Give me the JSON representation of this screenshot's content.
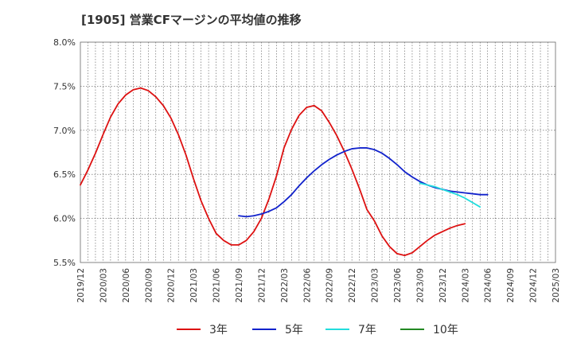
{
  "chart_data": {
    "type": "line",
    "title": "[1905]  営業CFマージンの平均値の推移",
    "x_ticks": [
      "2019/12",
      "2020/03",
      "2020/06",
      "2020/09",
      "2020/12",
      "2021/03",
      "2021/06",
      "2021/09",
      "2021/12",
      "2022/03",
      "2022/06",
      "2022/09",
      "2022/12",
      "2023/03",
      "2023/06",
      "2023/09",
      "2023/12",
      "2024/03",
      "2024/06",
      "2024/09",
      "2024/12",
      "2025/03"
    ],
    "y_ticks": [
      "5.5%",
      "6.0%",
      "6.5%",
      "7.0%",
      "7.5%",
      "8.0%"
    ],
    "ylim": [
      5.5,
      8.0
    ],
    "grid": true,
    "legend_position": "bottom",
    "series": [
      {
        "name": "3年",
        "color": "#dd1111",
        "points": [
          [
            "2019/12",
            6.38
          ],
          [
            "2020/01",
            6.55
          ],
          [
            "2020/02",
            6.74
          ],
          [
            "2020/03",
            6.95
          ],
          [
            "2020/04",
            7.15
          ],
          [
            "2020/05",
            7.3
          ],
          [
            "2020/06",
            7.4
          ],
          [
            "2020/07",
            7.46
          ],
          [
            "2020/08",
            7.48
          ],
          [
            "2020/09",
            7.45
          ],
          [
            "2020/10",
            7.38
          ],
          [
            "2020/11",
            7.28
          ],
          [
            "2020/12",
            7.14
          ],
          [
            "2021/01",
            6.95
          ],
          [
            "2021/02",
            6.72
          ],
          [
            "2021/03",
            6.45
          ],
          [
            "2021/04",
            6.2
          ],
          [
            "2021/05",
            6.0
          ],
          [
            "2021/06",
            5.83
          ],
          [
            "2021/07",
            5.75
          ],
          [
            "2021/08",
            5.7
          ],
          [
            "2021/09",
            5.7
          ],
          [
            "2021/10",
            5.75
          ],
          [
            "2021/11",
            5.85
          ],
          [
            "2021/12",
            6.0
          ],
          [
            "2022/01",
            6.22
          ],
          [
            "2022/02",
            6.48
          ],
          [
            "2022/03",
            6.8
          ],
          [
            "2022/04",
            7.01
          ],
          [
            "2022/05",
            7.17
          ],
          [
            "2022/06",
            7.26
          ],
          [
            "2022/07",
            7.28
          ],
          [
            "2022/08",
            7.22
          ],
          [
            "2022/09",
            7.09
          ],
          [
            "2022/10",
            6.94
          ],
          [
            "2022/11",
            6.76
          ],
          [
            "2022/12",
            6.56
          ],
          [
            "2023/01",
            6.34
          ],
          [
            "2023/02",
            6.1
          ],
          [
            "2023/03",
            5.97
          ],
          [
            "2023/04",
            5.8
          ],
          [
            "2023/05",
            5.68
          ],
          [
            "2023/06",
            5.6
          ],
          [
            "2023/07",
            5.58
          ],
          [
            "2023/08",
            5.61
          ],
          [
            "2023/09",
            5.68
          ],
          [
            "2023/10",
            5.75
          ],
          [
            "2023/11",
            5.81
          ],
          [
            "2023/12",
            5.85
          ],
          [
            "2024/01",
            5.89
          ],
          [
            "2024/02",
            5.92
          ],
          [
            "2024/03",
            5.94
          ]
        ]
      },
      {
        "name": "5年",
        "color": "#1122cc",
        "points": [
          [
            "2021/09",
            6.03
          ],
          [
            "2021/10",
            6.02
          ],
          [
            "2021/11",
            6.03
          ],
          [
            "2021/12",
            6.05
          ],
          [
            "2022/01",
            6.08
          ],
          [
            "2022/02",
            6.12
          ],
          [
            "2022/03",
            6.19
          ],
          [
            "2022/04",
            6.27
          ],
          [
            "2022/05",
            6.37
          ],
          [
            "2022/06",
            6.46
          ],
          [
            "2022/07",
            6.54
          ],
          [
            "2022/08",
            6.61
          ],
          [
            "2022/09",
            6.67
          ],
          [
            "2022/10",
            6.72
          ],
          [
            "2022/11",
            6.76
          ],
          [
            "2022/12",
            6.79
          ],
          [
            "2023/01",
            6.8
          ],
          [
            "2023/02",
            6.8
          ],
          [
            "2023/03",
            6.78
          ],
          [
            "2023/04",
            6.74
          ],
          [
            "2023/05",
            6.68
          ],
          [
            "2023/06",
            6.61
          ],
          [
            "2023/07",
            6.53
          ],
          [
            "2023/08",
            6.47
          ],
          [
            "2023/09",
            6.42
          ],
          [
            "2023/10",
            6.38
          ],
          [
            "2023/11",
            6.35
          ],
          [
            "2023/12",
            6.33
          ],
          [
            "2024/01",
            6.31
          ],
          [
            "2024/02",
            6.3
          ],
          [
            "2024/03",
            6.29
          ],
          [
            "2024/04",
            6.28
          ],
          [
            "2024/05",
            6.27
          ],
          [
            "2024/06",
            6.27
          ]
        ]
      },
      {
        "name": "7年",
        "color": "#22dddd",
        "points": [
          [
            "2023/09",
            6.4
          ],
          [
            "2023/10",
            6.38
          ],
          [
            "2023/11",
            6.36
          ],
          [
            "2023/12",
            6.33
          ],
          [
            "2024/01",
            6.3
          ],
          [
            "2024/02",
            6.27
          ],
          [
            "2024/03",
            6.23
          ],
          [
            "2024/04",
            6.18
          ],
          [
            "2024/05",
            6.13
          ]
        ]
      },
      {
        "name": "10年",
        "color": "#228822",
        "points": []
      }
    ]
  }
}
